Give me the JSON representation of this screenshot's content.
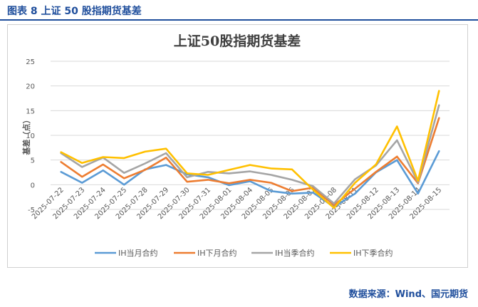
{
  "figure_caption": "图表 8  上证 50 股指期货基差",
  "source_note": "数据来源：Wind、国元期货",
  "colors": {
    "caption": "#1f4e9c",
    "grid": "#d9d9d9",
    "axis_text": "#595959",
    "title": "#404040"
  },
  "chart_data": {
    "type": "line",
    "title": "上证50股指期货基差",
    "xlabel": "",
    "ylabel": "基差（点）",
    "ylim": [
      -5,
      25
    ],
    "yticks": [
      -5,
      0,
      5,
      10,
      15,
      20,
      25
    ],
    "grid": true,
    "legend_position": "bottom",
    "x": [
      "2025-07-22",
      "2025-07-23",
      "2025-07-24",
      "2025-07-25",
      "2025-07-28",
      "2025-07-29",
      "2025-07-30",
      "2025-07-31",
      "2025-08-01",
      "2025-08-04",
      "2025-08-05",
      "2025-08-06",
      "2025-08-07",
      "2025-08-08",
      "2025-08-11",
      "2025-08-12",
      "2025-08-13",
      "2025-08-14",
      "2025-08-15"
    ],
    "x_tick_labels": [
      "2025-07-22",
      "2025-07-23",
      "2025-07-24",
      "2025-07-25",
      "2025-07-28",
      "2025-07-29",
      "2025-07-30",
      "2025-07-31",
      "2025-08-01",
      "2025-08-04",
      "2025-08-05",
      "2025-08-06",
      "2025-08-07",
      "2025-08-08",
      "2025-08-11",
      "2025-08-12",
      "2025-08-13",
      "2025-08-14",
      "2025-08-15"
    ],
    "series": [
      {
        "name": "IH当月合约",
        "color": "#5b9bd5",
        "values": [
          2.6,
          0.4,
          2.9,
          0.0,
          3.1,
          4.0,
          2.1,
          1.5,
          -0.1,
          0.7,
          -1.3,
          -1.8,
          -1.6,
          -4.5,
          -1.8,
          2.5,
          5.0,
          -1.8,
          6.8
        ]
      },
      {
        "name": "IH下月合约",
        "color": "#ed7d31",
        "values": [
          4.6,
          1.6,
          4.1,
          1.3,
          3.0,
          5.5,
          0.6,
          1.0,
          0.3,
          1.0,
          0.4,
          -1.3,
          -0.6,
          -4.1,
          -0.8,
          2.6,
          5.7,
          0.3,
          13.5
        ]
      },
      {
        "name": "IH当季合约",
        "color": "#a5a5a5",
        "values": [
          6.4,
          3.6,
          5.5,
          2.4,
          4.3,
          6.4,
          1.5,
          2.6,
          2.3,
          2.7,
          2.0,
          1.0,
          -0.3,
          -3.8,
          1.1,
          3.9,
          9.0,
          0.5,
          16.1
        ]
      },
      {
        "name": "IH下季合约",
        "color": "#ffc000",
        "values": [
          6.6,
          4.4,
          5.6,
          5.4,
          6.7,
          7.3,
          2.3,
          2.0,
          3.0,
          4.0,
          3.3,
          3.1,
          -1.0,
          -4.7,
          0.4,
          4.1,
          11.8,
          0.8,
          19.0
        ]
      }
    ]
  }
}
